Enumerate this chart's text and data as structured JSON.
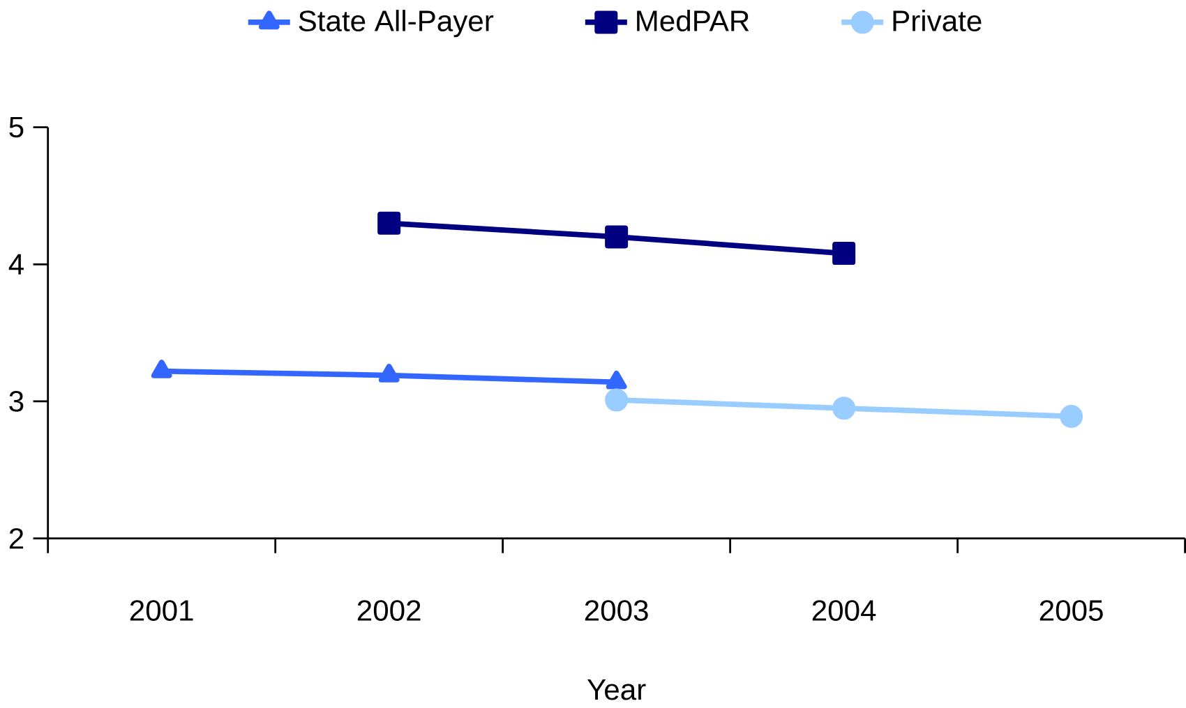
{
  "chart_data": {
    "type": "line",
    "xlabel": "Year",
    "categories": [
      "2001",
      "2002",
      "2003",
      "2004",
      "2005"
    ],
    "series": [
      {
        "name": "State All-Payer",
        "color": "#3366ff",
        "marker": "triangle",
        "values": [
          3.22,
          3.19,
          3.14,
          null,
          null
        ]
      },
      {
        "name": "MedPAR",
        "color": "#000080",
        "marker": "square",
        "values": [
          null,
          4.3,
          4.2,
          4.08,
          null
        ]
      },
      {
        "name": "Private",
        "color": "#99ccff",
        "marker": "circle",
        "values": [
          null,
          null,
          3.01,
          2.95,
          2.89
        ]
      }
    ],
    "ylim": [
      2,
      5
    ],
    "yticks": [
      2,
      3,
      4,
      5
    ],
    "legend": "top",
    "grid": false
  }
}
